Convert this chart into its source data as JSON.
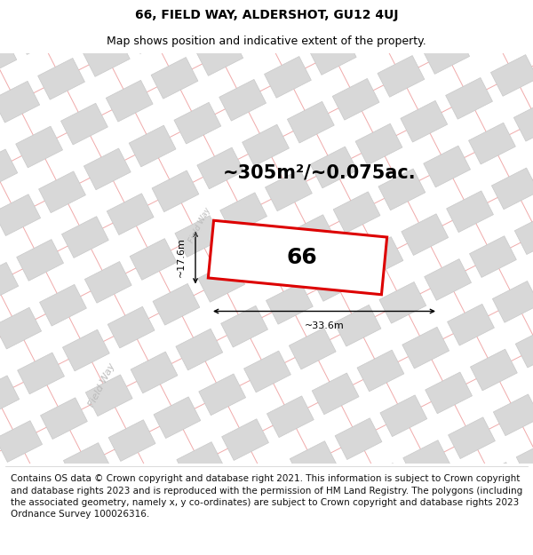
{
  "title": "66, FIELD WAY, ALDERSHOT, GU12 4UJ",
  "subtitle": "Map shows position and indicative extent of the property.",
  "area_text": "~305m²/~0.075ac.",
  "dim_width": "~33.6m",
  "dim_height": "~17.6m",
  "label": "66",
  "footer": "Contains OS data © Crown copyright and database right 2021. This information is subject to Crown copyright and database rights 2023 and is reproduced with the permission of HM Land Registry. The polygons (including the associated geometry, namely x, y co-ordinates) are subject to Crown copyright and database rights 2023 Ordnance Survey 100026316.",
  "bg_color": "#ffffff",
  "map_bg": "#f8f8f8",
  "block_color": "#d8d8d8",
  "street_line_color": "#f0aaaa",
  "red_plot_color": "#dd0000",
  "street_label_color": "#bbbbbb",
  "title_fontsize": 10,
  "subtitle_fontsize": 9,
  "area_fontsize": 15,
  "label_fontsize": 18,
  "footer_fontsize": 7.5
}
